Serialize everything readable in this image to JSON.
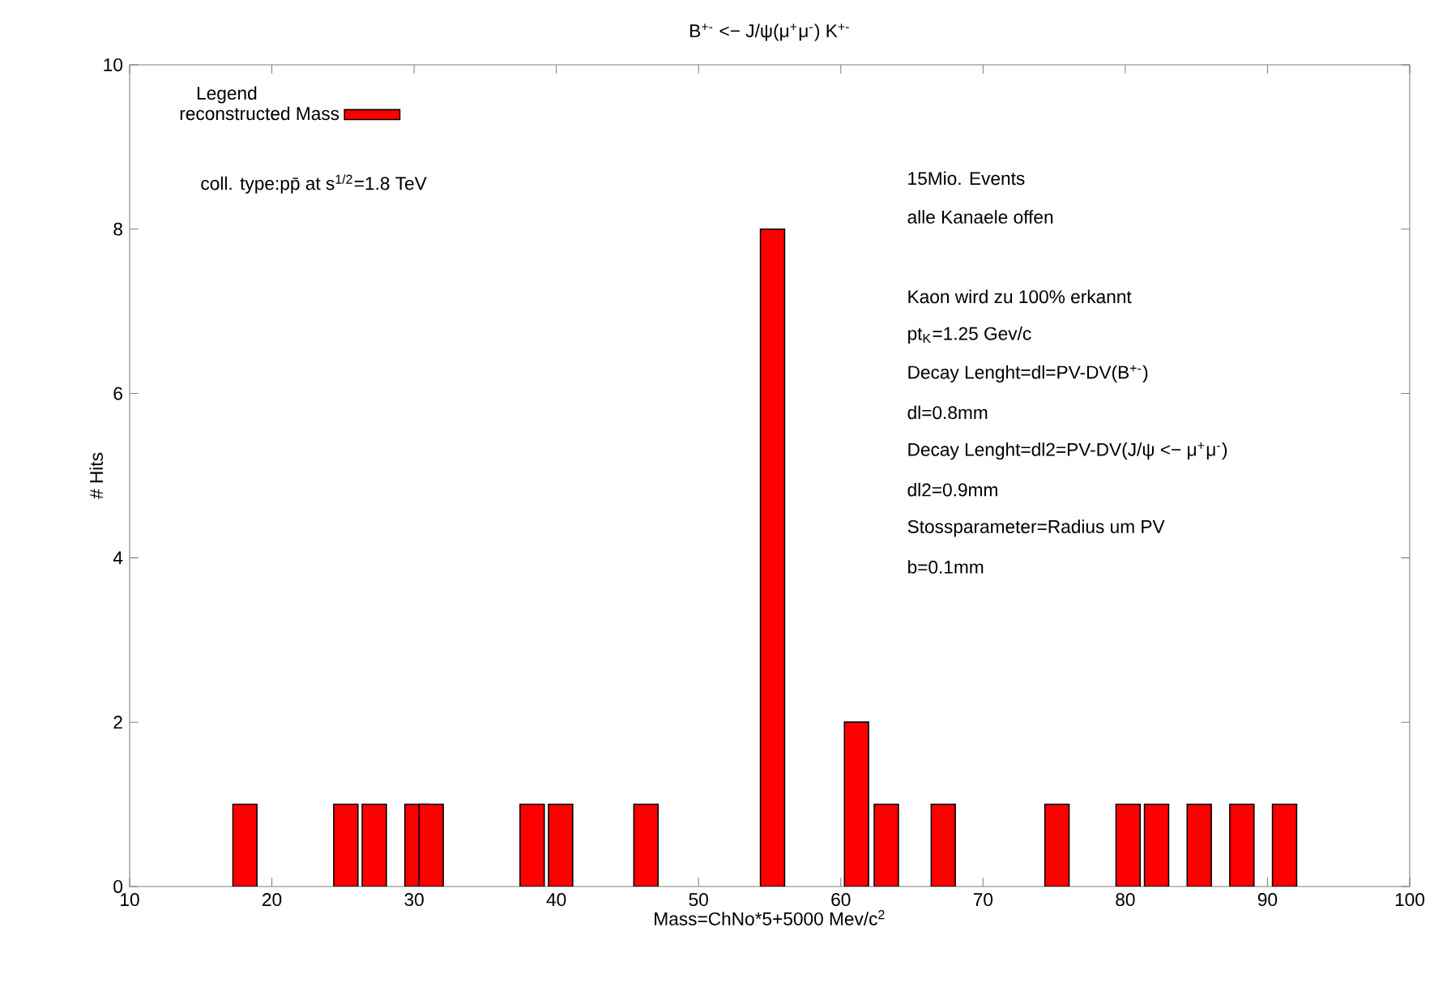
{
  "chart_data": {
    "type": "bar",
    "title": "B$^{+-}$ <− J/ψ(μ$^{+}$μ$^{-}$) K$^{+-}$",
    "xlabel": "Mass=ChNo*5+5000 Mev/c$^{2}$",
    "ylabel": "# Hits",
    "legend_title": "Legend",
    "x": [
      18.1,
      25.2,
      27.2,
      30.2,
      31.2,
      38.3,
      40.3,
      46.3,
      55.2,
      61.1,
      63.2,
      67.2,
      75.2,
      80.2,
      82.2,
      85.2,
      88.2,
      91.2
    ],
    "series": [
      {
        "name": "reconstructed Mass",
        "color": "#ff0000",
        "values": [
          1,
          1,
          1,
          1,
          1,
          1,
          1,
          1,
          8,
          2,
          1,
          1,
          1,
          1,
          1,
          1,
          1,
          1
        ]
      }
    ],
    "xlim": [
      10,
      100
    ],
    "xticks": [
      10,
      20,
      30,
      40,
      50,
      60,
      70,
      80,
      90,
      100
    ],
    "ylim": [
      0,
      10
    ],
    "yticks": [
      0,
      2,
      4,
      6,
      8,
      10
    ],
    "grid": false,
    "legend": "top left",
    "annotations": [
      "coll. type:pp̄ at s$^{1/2}$=1.8  TeV",
      "15Mio. Events",
      "alle Kanaele offen",
      "Kaon wird zu 100% erkannt",
      "pt$_{K}$=1.25 Gev/c",
      "Decay Lenght=dl=PV-DV(B$^{+-}$)",
      "dl=0.8mm",
      "Decay Lenght=dl2=PV-DV(J/ψ <− μ$^{+}$μ$^{-}$)",
      "dl2=0.9mm",
      "Stossparameter=Radius um PV",
      "b=0.1mm"
    ]
  }
}
